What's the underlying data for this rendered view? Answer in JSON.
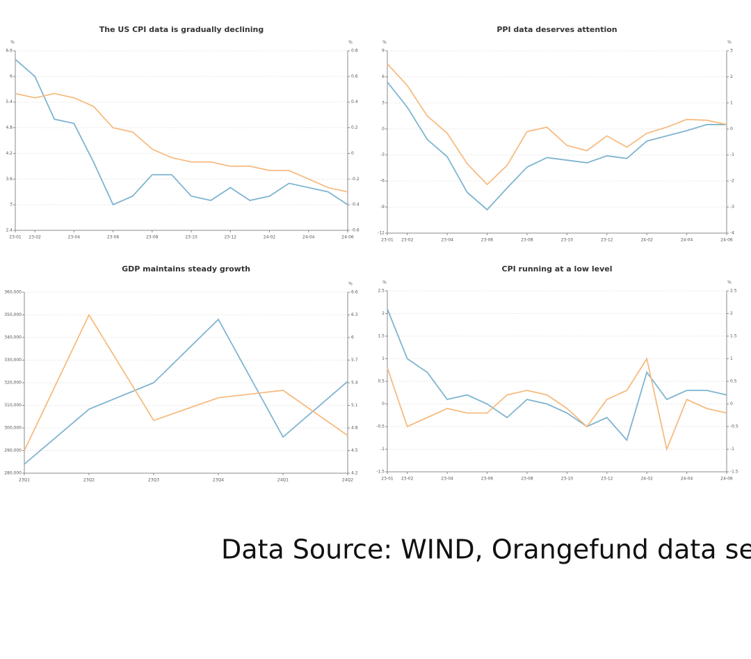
{
  "chart_data": [
    {
      "type": "line",
      "title": "The US CPI data is gradually declining",
      "ylabel": "%",
      "y2label": "%",
      "categories": [
        "23-01",
        "23-02",
        null,
        "23-04",
        null,
        "23-06",
        null,
        "23-08",
        null,
        "23-10",
        null,
        "23-12",
        null,
        "24-02",
        null,
        "24-04",
        null,
        "24-06"
      ],
      "series": [
        {
          "color": "#7fb4d0",
          "values": [
            6.4,
            6.0,
            5.0,
            4.9,
            4.0,
            3.0,
            3.2,
            3.7,
            3.7,
            3.2,
            3.1,
            3.4,
            3.1,
            3.2,
            3.5,
            3.4,
            3.3,
            3.0
          ]
        },
        {
          "color": "#f6bb80",
          "values": [
            5.6,
            5.5,
            5.6,
            5.5,
            5.3,
            4.8,
            4.7,
            4.3,
            4.1,
            4.0,
            4.0,
            3.9,
            3.9,
            3.8,
            3.8,
            3.6,
            3.4,
            3.3
          ]
        }
      ],
      "ylim": [
        2.4,
        6.6
      ],
      "yticks": [
        6.6,
        6,
        5.4,
        4.8,
        4.2,
        3.6,
        3,
        2.4
      ],
      "y2lim": [
        -0.6,
        0.8
      ],
      "y2ticks": [
        0.8,
        0.6,
        0.4,
        0.2,
        0,
        -0.2,
        -0.4,
        -0.6
      ],
      "grid": true
    },
    {
      "type": "line",
      "title": "PPI data deserves attention",
      "ylabel": "%",
      "y2label": "%",
      "categories": [
        "23-01",
        "23-02",
        null,
        "23-04",
        null,
        "23-06",
        null,
        "23-08",
        null,
        "23-10",
        null,
        "23-12",
        null,
        "24-02",
        null,
        "24-04",
        null,
        "24-06"
      ],
      "series": [
        {
          "color": "#7fb4d0",
          "values": [
            5.4,
            2.5,
            -1.2,
            -3.2,
            -7.3,
            -9.3,
            -6.8,
            -4.4,
            -3.3,
            -3.6,
            -3.9,
            -3.1,
            -3.4,
            -1.4,
            -0.8,
            -0.2,
            0.5,
            0.5
          ]
        },
        {
          "color": "#f6bb80",
          "values": [
            7.5,
            5.0,
            1.5,
            -0.5,
            -4.0,
            -6.4,
            -4.2,
            -0.3,
            0.2,
            -1.9,
            -2.5,
            -0.8,
            -2.1,
            -0.5,
            0.2,
            1.1,
            1.0,
            0.5
          ]
        }
      ],
      "ylim": [
        -12,
        9
      ],
      "yticks": [
        9,
        6,
        3,
        0,
        -3,
        -6,
        -9,
        -12
      ],
      "y2lim": [
        -4,
        3
      ],
      "y2ticks": [
        3,
        2,
        1,
        0,
        -1,
        -2,
        -3,
        -4
      ],
      "grid": true
    },
    {
      "type": "line",
      "title": "GDP maintains steady growth",
      "y2label": "%",
      "categories": [
        "23Q1",
        "23Q2",
        "23Q3",
        "23Q4",
        "24Q1",
        "24Q2"
      ],
      "series": [
        {
          "color": "#7fb4d0",
          "values": [
            284000,
            308300,
            320000,
            348000,
            296000,
            320600
          ]
        },
        {
          "color": "#f6bb80",
          "axis": "y2",
          "values": [
            4.5,
            6.3,
            4.9,
            5.2,
            5.3,
            4.7
          ]
        }
      ],
      "ylim": [
        280000,
        360000
      ],
      "yticks": [
        {
          "value": 360000,
          "label": "360,000"
        },
        {
          "value": 350000,
          "label": "350,000"
        },
        {
          "value": 340000,
          "label": "340,000"
        },
        {
          "value": 330000,
          "label": "330,000"
        },
        {
          "value": 320000,
          "label": "320,000"
        },
        {
          "value": 310000,
          "label": "310,000"
        },
        {
          "value": 300000,
          "label": "300,000"
        },
        {
          "value": 290000,
          "label": "290,000"
        },
        {
          "value": 280000,
          "label": "280,000"
        }
      ],
      "y2lim": [
        4.2,
        6.6
      ],
      "y2ticks": [
        6.6,
        6.3,
        6,
        5.7,
        5.4,
        5.1,
        4.8,
        4.5,
        4.2
      ],
      "grid": true
    },
    {
      "type": "line",
      "title": "CPI running at a low level",
      "ylabel": "%",
      "y2label": "%",
      "categories": [
        "23-01",
        "23-02",
        null,
        "23-04",
        null,
        "23-06",
        null,
        "23-08",
        null,
        "23-10",
        null,
        "23-12",
        null,
        "24-02",
        null,
        "24-04",
        null,
        "24-06"
      ],
      "series": [
        {
          "color": "#7fb4d0",
          "values": [
            2.1,
            1.0,
            0.7,
            0.1,
            0.2,
            0,
            -0.3,
            0.1,
            0,
            -0.2,
            -0.5,
            -0.3,
            -0.8,
            0.7,
            0.1,
            0.3,
            0.3,
            0.2
          ]
        },
        {
          "color": "#f6bb80",
          "values": [
            0.8,
            -0.5,
            -0.3,
            -0.1,
            -0.2,
            -0.2,
            0.2,
            0.3,
            0.2,
            -0.1,
            -0.5,
            0.1,
            0.3,
            1.0,
            -1.0,
            0.1,
            -0.1,
            -0.2
          ]
        }
      ],
      "ylim": [
        -1.5,
        2.5
      ],
      "yticks": [
        2.5,
        2,
        1.5,
        1,
        0.5,
        0,
        -0.5,
        -1,
        -1.5
      ],
      "y2lim": [
        -1.5,
        2.5
      ],
      "y2ticks": [
        2.5,
        2,
        1.5,
        1,
        0.5,
        0,
        -0.5,
        -1,
        -1.5
      ],
      "grid": true
    }
  ],
  "source": "Data Source: WIND, Orangefund data sea"
}
